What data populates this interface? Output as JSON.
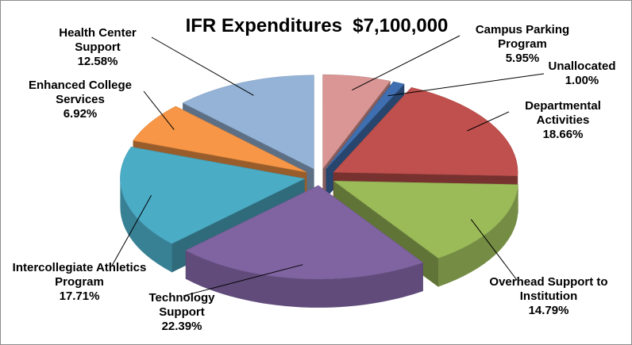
{
  "chart_data": {
    "type": "pie3d",
    "title": "IFR Expenditures  $7,100,000",
    "categories": [
      "Campus Parking Program",
      "Unallocated",
      "Departmental Activities",
      "Overhead Support to Institution",
      "Technology Support",
      "Intercollegiate Athletics Program",
      "Enhanced College Services",
      "Health Center Support"
    ],
    "values": [
      5.95,
      1.0,
      18.66,
      14.79,
      22.39,
      17.71,
      6.92,
      12.58
    ],
    "value_labels": [
      "5.95%",
      "1.00%",
      "18.66%",
      "14.79%",
      "22.39%",
      "17.71%",
      "6.92%",
      "12.58%"
    ],
    "colors": [
      "#d99694",
      "#3f6fb0",
      "#c0504d",
      "#9bbb59",
      "#8064a2",
      "#4bacc6",
      "#f79646",
      "#95b3d7"
    ]
  }
}
